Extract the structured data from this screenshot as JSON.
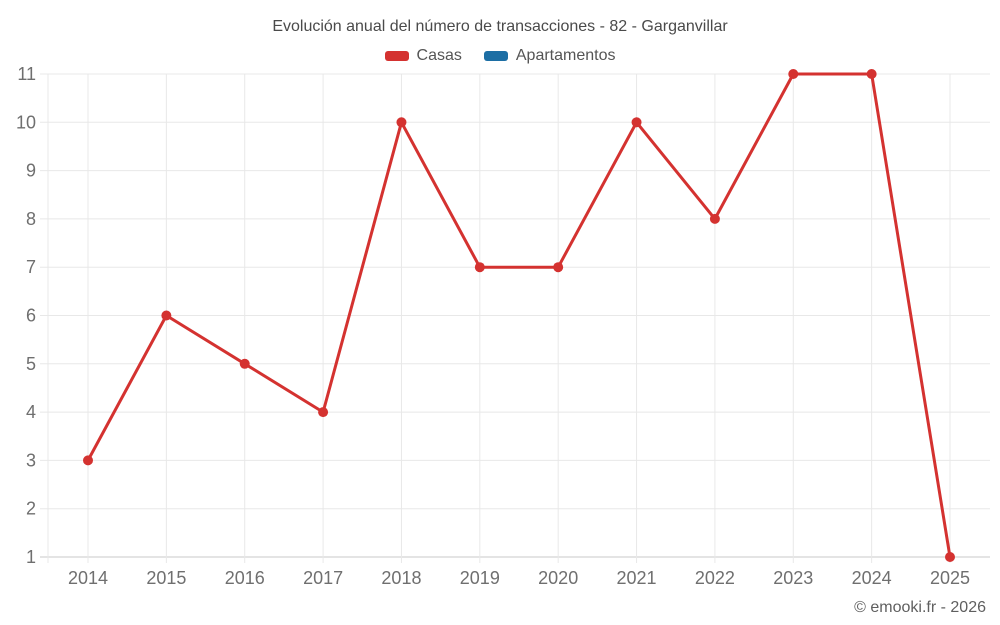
{
  "chart_data": {
    "type": "line",
    "title": "Evolución anual del número de transacciones - 82 - Garganvillar",
    "categories": [
      "2014",
      "2015",
      "2016",
      "2017",
      "2018",
      "2019",
      "2020",
      "2021",
      "2022",
      "2023",
      "2024",
      "2025"
    ],
    "series": [
      {
        "name": "Casas",
        "color": "#d43230",
        "values": [
          3,
          6,
          5,
          4,
          10,
          7,
          7,
          10,
          8,
          11,
          11,
          1
        ]
      },
      {
        "name": "Apartamentos",
        "color": "#1c6ea4",
        "values": []
      }
    ],
    "xlabel": "",
    "ylabel": "",
    "ylim": [
      1,
      11
    ],
    "y_ticks": [
      1,
      2,
      3,
      4,
      5,
      6,
      7,
      8,
      9,
      10,
      11
    ],
    "grid": true,
    "legend_position": "top"
  },
  "footer": {
    "copyright": "© emooki.fr - 2026"
  },
  "style_colors": {
    "grid": "#e8e8e8",
    "axis": "#c9c9c9",
    "tick_label": "#6f6f6f",
    "title": "#4a4a4a",
    "legend_text": "#555555",
    "footer_text": "#5f5f5f"
  }
}
